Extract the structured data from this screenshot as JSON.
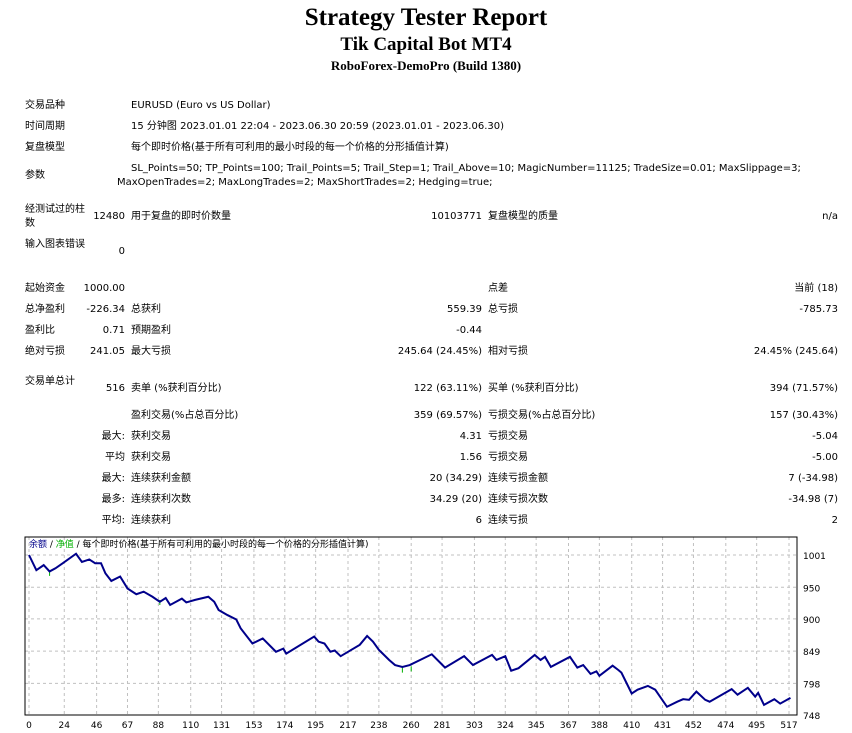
{
  "header": {
    "title": "Strategy Tester Report",
    "subtitle": "Tik Capital Bot MT4",
    "build": "RoboForex-DemoPro (Build 1380)"
  },
  "info": [
    {
      "label": "交易品种",
      "value": "EURUSD (Euro vs US Dollar)"
    },
    {
      "label": "时间周期",
      "value": "15 分钟图 2023.01.01 22:04 - 2023.06.30 20:59 (2023.01.01 - 2023.06.30)"
    },
    {
      "label": "复盘模型",
      "value": "每个即时价格(基于所有可利用的最小时段的每一个价格的分形插值计算)"
    },
    {
      "label": "参数",
      "value": "SL_Points=50; TP_Points=100; Trail_Points=5; Trail_Step=1; Trail_Above=10; MagicNumber=11125; TradeSize=0.01; MaxSlippage=3;",
      "value2": "MaxOpenTrades=2; MaxLongTrades=2; MaxShortTrades=2; Hedging=true;"
    }
  ],
  "stats": [
    {
      "l1": "经测试过的柱数",
      "v1": "12480",
      "l2": "用于复盘的即时价数量",
      "v2": "10103771",
      "l3": "复盘模型的质量",
      "v3": "n/a"
    },
    {
      "l1": "输入图表错误",
      "v1": "0"
    },
    {
      "l1": "起始资金",
      "v1": "1000.00",
      "l3": "点差",
      "v3": "当前 (18)"
    },
    {
      "l1": "总净盈利",
      "v1": "-226.34",
      "l2": "总获利",
      "v2": "559.39",
      "l3": "总亏损",
      "v3": "-785.73"
    },
    {
      "l1": "盈利比",
      "v1": "0.71",
      "l2": "预期盈利",
      "v2": "-0.44"
    },
    {
      "l1": "绝对亏损",
      "v1": "241.05",
      "l2": "最大亏损",
      "v2": "245.64 (24.45%)",
      "l3": "相对亏损",
      "v3": "24.45% (245.64)"
    },
    {
      "l1": "交易单总计",
      "v1": "516",
      "l2": "卖单 (%获利百分比)",
      "v2": "122 (63.11%)",
      "l3": "买单 (%获利百分比)",
      "v3": "394 (71.57%)"
    },
    {
      "l2": "盈利交易(%占总百分比)",
      "v2": "359 (69.57%)",
      "l3": "亏损交易(%占总百分比)",
      "v3": "157 (30.43%)"
    },
    {
      "v1": "最大:",
      "l2": "获利交易",
      "v2": "4.31",
      "l3": "亏损交易",
      "v3": "-5.04"
    },
    {
      "v1": "平均",
      "l2": "获利交易",
      "v2": "1.56",
      "l3": "亏损交易",
      "v3": "-5.00"
    },
    {
      "v1": "最大:",
      "l2": "连续获利金额",
      "v2": "20 (34.29)",
      "l3": "连续亏损金额",
      "v3": "7 (-34.98)"
    },
    {
      "v1": "最多:",
      "l2": "连续获利次数",
      "v2": "34.29 (20)",
      "l3": "连续亏损次数",
      "v3": "-34.98 (7)"
    },
    {
      "v1": "平均:",
      "l2": "连续获利",
      "v2": "6",
      "l3": "连续亏损",
      "v3": "2"
    }
  ],
  "chart_data": {
    "type": "line",
    "legend": {
      "balance": "余额",
      "sep": "/",
      "equity": "净值",
      "desc": "/ 每个即时价格(基于所有可利用的最小时段的每一个价格的分形插值计算)"
    },
    "colors": {
      "balance": "#00008b",
      "equity": "#00b000",
      "grid": "#c0c0c0"
    },
    "x_ticks": [
      0,
      24,
      46,
      67,
      88,
      110,
      131,
      153,
      174,
      195,
      217,
      238,
      260,
      281,
      303,
      324,
      345,
      367,
      388,
      410,
      431,
      452,
      474,
      495,
      517
    ],
    "y_ticks": [
      1001,
      950,
      900,
      849,
      798,
      748
    ],
    "xlim": [
      0,
      517
    ],
    "ylim": [
      748,
      1001
    ],
    "balance": [
      [
        0,
        1001
      ],
      [
        5,
        977
      ],
      [
        10,
        985
      ],
      [
        14,
        975
      ],
      [
        18,
        980
      ],
      [
        23,
        988
      ],
      [
        32,
        1003
      ],
      [
        36,
        990
      ],
      [
        41,
        994
      ],
      [
        45,
        988
      ],
      [
        49,
        988
      ],
      [
        52,
        972
      ],
      [
        56,
        960
      ],
      [
        62,
        967
      ],
      [
        67,
        948
      ],
      [
        73,
        939
      ],
      [
        78,
        943
      ],
      [
        84,
        935
      ],
      [
        89,
        927
      ],
      [
        93,
        933
      ],
      [
        96,
        922
      ],
      [
        104,
        932
      ],
      [
        107,
        926
      ],
      [
        113,
        930
      ],
      [
        122,
        935
      ],
      [
        126,
        927
      ],
      [
        129,
        914
      ],
      [
        135,
        906
      ],
      [
        141,
        899
      ],
      [
        144,
        885
      ],
      [
        152,
        861
      ],
      [
        159,
        869
      ],
      [
        168,
        848
      ],
      [
        173,
        853
      ],
      [
        175,
        845
      ],
      [
        194,
        872
      ],
      [
        197,
        864
      ],
      [
        201,
        861
      ],
      [
        205,
        848
      ],
      [
        208,
        850
      ],
      [
        212,
        841
      ],
      [
        225,
        859
      ],
      [
        230,
        873
      ],
      [
        234,
        864
      ],
      [
        238,
        851
      ],
      [
        245,
        835
      ],
      [
        249,
        827
      ],
      [
        254,
        824
      ],
      [
        259,
        827
      ],
      [
        274,
        844
      ],
      [
        280,
        830
      ],
      [
        283,
        823
      ],
      [
        296,
        841
      ],
      [
        302,
        827
      ],
      [
        315,
        843
      ],
      [
        318,
        835
      ],
      [
        324,
        841
      ],
      [
        328,
        818
      ],
      [
        333,
        822
      ],
      [
        344,
        843
      ],
      [
        348,
        835
      ],
      [
        351,
        840
      ],
      [
        355,
        824
      ],
      [
        368,
        840
      ],
      [
        373,
        823
      ],
      [
        377,
        827
      ],
      [
        382,
        813
      ],
      [
        386,
        817
      ],
      [
        388,
        810
      ],
      [
        397,
        826
      ],
      [
        401,
        819
      ],
      [
        403,
        815
      ],
      [
        410,
        782
      ],
      [
        414,
        788
      ],
      [
        421,
        794
      ],
      [
        426,
        788
      ],
      [
        434,
        761
      ],
      [
        441,
        769
      ],
      [
        445,
        773
      ],
      [
        449,
        772
      ],
      [
        454,
        785
      ],
      [
        460,
        772
      ],
      [
        463,
        769
      ],
      [
        478,
        789
      ],
      [
        482,
        780
      ],
      [
        489,
        791
      ],
      [
        494,
        777
      ],
      [
        496,
        783
      ],
      [
        500,
        764
      ],
      [
        507,
        773
      ],
      [
        511,
        766
      ],
      [
        518,
        775
      ]
    ],
    "equity_dips": [
      [
        14,
        968
      ],
      [
        89,
        922
      ],
      [
        254,
        815
      ],
      [
        260,
        817
      ]
    ]
  }
}
